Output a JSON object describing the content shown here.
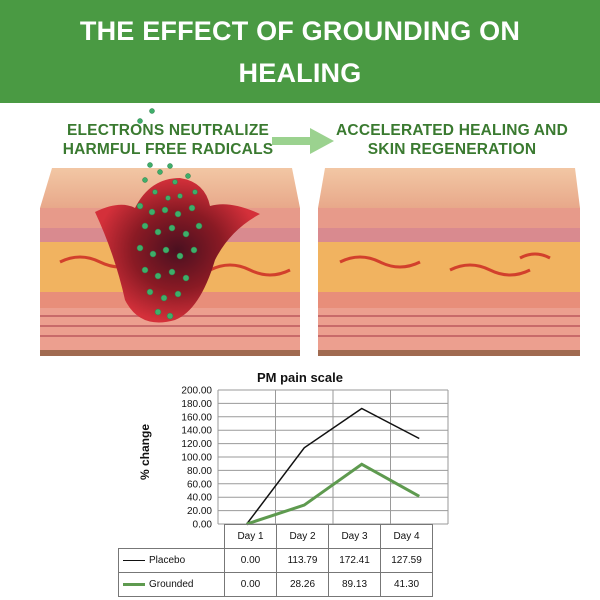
{
  "banner": {
    "title": "THE EFFECT OF GROUNDING ON HEALING"
  },
  "captions": {
    "left": "ELECTRONS NEUTRALIZE HARMFUL FREE RADICALS",
    "right": "ACCELERATED HEALING AND SKIN REGENERATION"
  },
  "colors": {
    "banner": "#4a9a43",
    "caption": "#3a7a30",
    "placebo": "#111111",
    "grounded": "#5e9a4f"
  },
  "chart_data": {
    "type": "line",
    "title": "PM pain scale",
    "xlabel": "",
    "ylabel": "% change",
    "categories": [
      "Day 1",
      "Day 2",
      "Day 3",
      "Day 4"
    ],
    "ylim": [
      0,
      200
    ],
    "yticks": [
      "0.00",
      "20.00",
      "40.00",
      "60.00",
      "80.00",
      "100.00",
      "120.00",
      "140.00",
      "160.00",
      "180.00",
      "200.00"
    ],
    "grid": true,
    "series": [
      {
        "name": "Placebo",
        "values": [
          0,
          113.79,
          172.41,
          127.59
        ],
        "labels": [
          "0.00",
          "113.79",
          "172.41",
          "127.59"
        ]
      },
      {
        "name": "Grounded",
        "values": [
          0,
          28.26,
          89.13,
          41.3
        ],
        "labels": [
          "0.00",
          "28.26",
          "89.13",
          "41.30"
        ]
      }
    ]
  }
}
